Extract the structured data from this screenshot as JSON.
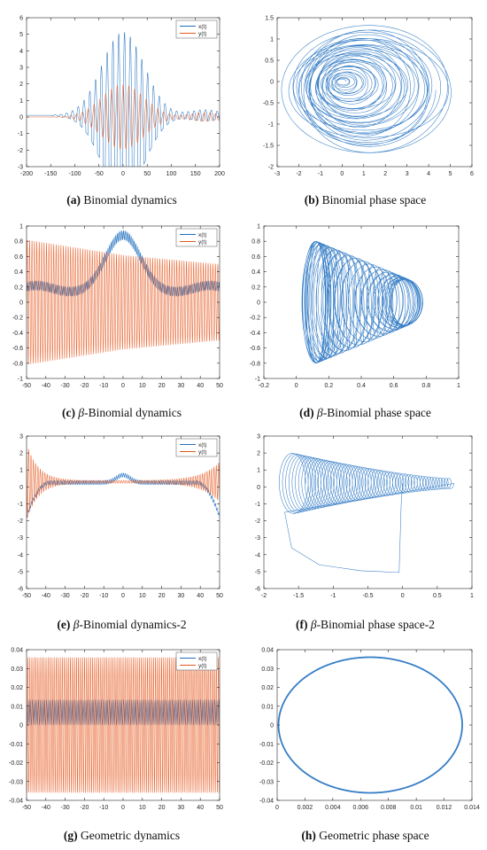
{
  "colors": {
    "x_series": "#1f6fc0",
    "y_series": "#e5571d",
    "axis": "#262626",
    "background": "#ffffff"
  },
  "captions": [
    {
      "letter": "a",
      "prefix": "",
      "text": " Binomial dynamics"
    },
    {
      "letter": "b",
      "prefix": "",
      "text": " Binomial phase space"
    },
    {
      "letter": "c",
      "prefix": "β",
      "text": "-Binomial dynamics"
    },
    {
      "letter": "d",
      "prefix": "β",
      "text": "-Binomial phase space"
    },
    {
      "letter": "e",
      "prefix": "β",
      "text": "-Binomial dynamics-2"
    },
    {
      "letter": "f",
      "prefix": "β",
      "text": "-Binomial phase space-2"
    },
    {
      "letter": "g",
      "prefix": "",
      "text": " Geometric dynamics"
    },
    {
      "letter": "h",
      "prefix": "",
      "text": " Geometric phase space"
    }
  ],
  "chart_data": [
    {
      "id": "a",
      "type": "line",
      "title": "",
      "xlabel": "",
      "ylabel": "",
      "xlim": [
        -200,
        200
      ],
      "ylim": [
        -3,
        6
      ],
      "xticks": [
        -200,
        -150,
        -100,
        -50,
        0,
        50,
        100,
        150,
        200
      ],
      "yticks": [
        -3,
        -2,
        -1,
        0,
        1,
        2,
        3,
        4,
        5,
        6
      ],
      "legend": {
        "position": "top-right",
        "entries": [
          "x(t)",
          "y(t)"
        ]
      },
      "series": [
        {
          "name": "x(t)",
          "description_values": {
            "peak_amplitude": 5.4,
            "center": 0,
            "active_range": [
              -150,
              200
            ],
            "oscillation_period": 12
          }
        },
        {
          "name": "y(t)",
          "description_values": {
            "peak_amplitude": 2.0,
            "center": 0,
            "active_range": [
              -150,
              200
            ],
            "oscillation_period": 12
          }
        }
      ]
    },
    {
      "id": "b",
      "type": "line",
      "title": "",
      "xlabel": "",
      "ylabel": "",
      "xlim": [
        -3,
        6
      ],
      "ylim": [
        -2,
        1.5
      ],
      "xticks": [
        -3,
        -2,
        -1,
        0,
        1,
        2,
        3,
        4,
        5,
        6
      ],
      "yticks": [
        -2,
        -1.5,
        -1,
        -0.5,
        0,
        0.5,
        1,
        1.5
      ],
      "series": [
        {
          "name": "",
          "description_values": {
            "spiral_center": [
              0,
              0
            ],
            "x_range": [
              -2.7,
              5.4
            ],
            "y_range": [
              -1.8,
              1.4
            ]
          }
        }
      ]
    },
    {
      "id": "c",
      "type": "line",
      "title": "",
      "xlabel": "",
      "ylabel": "",
      "xlim": [
        -50,
        50
      ],
      "ylim": [
        -1,
        1
      ],
      "xticks": [
        -50,
        -40,
        -30,
        -20,
        -10,
        0,
        10,
        20,
        30,
        40,
        50
      ],
      "yticks": [
        -1,
        -0.8,
        -0.6,
        -0.4,
        -0.2,
        0,
        0.2,
        0.4,
        0.6,
        0.8,
        1
      ],
      "legend": {
        "position": "top-right",
        "entries": [
          "x(t)",
          "y(t)"
        ]
      },
      "series": [
        {
          "name": "x(t)",
          "description_values": {
            "center_peak": 0.88,
            "edge_value": 0.2,
            "trough": 0.1
          }
        },
        {
          "name": "y(t)",
          "description_values": {
            "amplitude_left": 0.82,
            "amplitude_right": 0.5,
            "center_mean": 0.0
          }
        }
      ]
    },
    {
      "id": "d",
      "type": "line",
      "title": "",
      "xlabel": "",
      "ylabel": "",
      "xlim": [
        -0.2,
        1
      ],
      "ylim": [
        -1,
        1
      ],
      "xticks": [
        -0.2,
        0,
        0.2,
        0.4,
        0.6,
        0.8,
        1
      ],
      "yticks": [
        -1,
        -0.8,
        -0.6,
        -0.4,
        -0.2,
        0,
        0.2,
        0.4,
        0.6,
        0.8,
        1
      ],
      "series": [
        {
          "name": "",
          "description_values": {
            "x_range": [
              0.02,
              0.86
            ],
            "y_range": [
              -0.82,
              0.82
            ]
          }
        }
      ]
    },
    {
      "id": "e",
      "type": "line",
      "title": "",
      "xlabel": "",
      "ylabel": "",
      "xlim": [
        -50,
        50
      ],
      "ylim": [
        -6,
        3
      ],
      "xticks": [
        -50,
        -40,
        -30,
        -20,
        -10,
        0,
        10,
        20,
        30,
        40,
        50
      ],
      "yticks": [
        -6,
        -5,
        -4,
        -3,
        -2,
        -1,
        0,
        1,
        2,
        3
      ],
      "legend": {
        "position": "top-right",
        "entries": [
          "x(t)",
          "y(t)"
        ]
      },
      "series": [
        {
          "name": "x(t)",
          "description_values": {
            "center_peak": 0.8,
            "edge_value": -1.8
          }
        },
        {
          "name": "y(t)",
          "description_values": {
            "edge_amplitude": 2.5,
            "center_mean": 0.3
          }
        }
      ]
    },
    {
      "id": "f",
      "type": "line",
      "title": "",
      "xlabel": "",
      "ylabel": "",
      "xlim": [
        -2,
        1
      ],
      "ylim": [
        -6,
        3
      ],
      "xticks": [
        -2,
        -1.5,
        -1,
        -0.5,
        0,
        0.5,
        1
      ],
      "yticks": [
        -6,
        -5,
        -4,
        -3,
        -2,
        -1,
        0,
        1,
        2,
        3
      ],
      "series": [
        {
          "name": "",
          "description_values": {
            "tail_corner": [
              0,
              -5
            ],
            "x_range": [
              -1.8,
              0.8
            ],
            "y_range": [
              -5.1,
              2.6
            ]
          }
        }
      ]
    },
    {
      "id": "g",
      "type": "line",
      "title": "",
      "xlabel": "",
      "ylabel": "",
      "xlim": [
        -50,
        50
      ],
      "ylim": [
        -0.04,
        0.04
      ],
      "xticks": [
        -50,
        -40,
        -30,
        -20,
        -10,
        0,
        10,
        20,
        30,
        40,
        50
      ],
      "yticks": [
        -0.04,
        -0.03,
        -0.02,
        -0.01,
        0,
        0.01,
        0.02,
        0.03,
        0.04
      ],
      "legend": {
        "position": "top-right",
        "entries": [
          "x(t)",
          "y(t)"
        ]
      },
      "series": [
        {
          "name": "x(t)",
          "description_values": {
            "mean": 0.0067,
            "amplitude": 0.0067
          }
        },
        {
          "name": "y(t)",
          "description_values": {
            "mean": 0,
            "amplitude": 0.036
          }
        }
      ]
    },
    {
      "id": "h",
      "type": "line",
      "title": "",
      "xlabel": "",
      "ylabel": "",
      "xlim": [
        0,
        0.014
      ],
      "ylim": [
        -0.04,
        0.04
      ],
      "xticks": [
        0,
        0.002,
        0.004,
        0.006,
        0.008,
        0.01,
        0.012,
        0.014
      ],
      "yticks": [
        -0.04,
        -0.03,
        -0.02,
        -0.01,
        0,
        0.01,
        0.02,
        0.03,
        0.04
      ],
      "series": [
        {
          "name": "",
          "description_values": {
            "ellipse_center": [
              0.0067,
              0
            ],
            "x_radius": 0.0066,
            "y_radius": 0.036
          }
        }
      ]
    }
  ]
}
